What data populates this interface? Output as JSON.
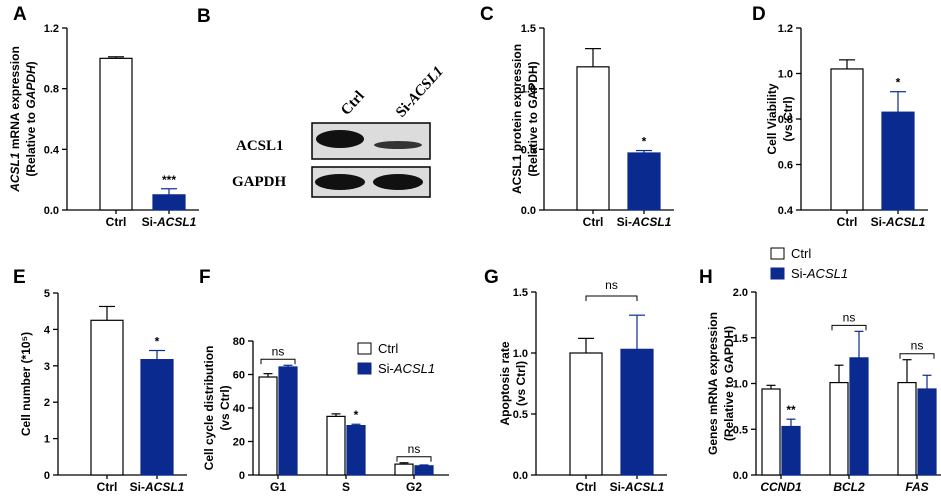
{
  "colors": {
    "ctrl": "#ffffff",
    "si": "#0b2a8f",
    "blot_band": "#111111",
    "blot_bg": "#d9d9d9"
  },
  "legend": {
    "ctrl": "Ctrl",
    "si_prefix": "Si-",
    "si_gene": "ACSL1"
  },
  "blot": {
    "panel_label": "B",
    "lanes": [
      {
        "prefix": "Ctrl",
        "gene": ""
      },
      {
        "prefix": "Si-",
        "gene": "ACSL1"
      }
    ],
    "rows": [
      "ACSL1",
      "GAPDH"
    ]
  },
  "chart_data": [
    {
      "panel": "A",
      "type": "bar",
      "ylabel_lines": [
        {
          "pre": "",
          "gene": "ACSL1",
          "post": " mRNA expression"
        },
        {
          "pre": "(Relative to ",
          "gene": "GAPDH",
          "post": ")"
        }
      ],
      "ylim": [
        0,
        1.2
      ],
      "yticks": [
        "0.0",
        "0.4",
        "0.8",
        "1.2"
      ],
      "categories": [
        {
          "pre": "Ctrl",
          "gene": ""
        },
        {
          "pre": "Si-",
          "gene": "ACSL1"
        }
      ],
      "values": [
        1.0,
        0.1
      ],
      "errors": [
        0.01,
        0.04
      ],
      "groups": [
        "ctrl",
        "si"
      ],
      "annotations": [
        {
          "bar": 1,
          "text": "***"
        }
      ]
    },
    {
      "panel": "C",
      "type": "bar",
      "ylabel_lines": [
        {
          "pre": "ACSL1 protein expression",
          "gene": "",
          "post": ""
        },
        {
          "pre": "(Relative to GAPDH)",
          "gene": "",
          "post": ""
        }
      ],
      "ylim": [
        0,
        1.5
      ],
      "yticks": [
        "0.0",
        "0.5",
        "1.0",
        "1.5"
      ],
      "categories": [
        {
          "pre": "Ctrl",
          "gene": ""
        },
        {
          "pre": "Si-",
          "gene": "ACSL1"
        }
      ],
      "values": [
        1.18,
        0.47
      ],
      "errors": [
        0.15,
        0.02
      ],
      "groups": [
        "ctrl",
        "si"
      ],
      "annotations": [
        {
          "bar": 1,
          "text": "*"
        }
      ]
    },
    {
      "panel": "D",
      "type": "bar",
      "ylabel_lines": [
        {
          "pre": "Cell Viability",
          "gene": "",
          "post": ""
        },
        {
          "pre": "(vs Ctrl)",
          "gene": "",
          "post": ""
        }
      ],
      "ylim": [
        0.4,
        1.2
      ],
      "yticks": [
        "0.4",
        "0.6",
        "0.8",
        "1.0",
        "1.2"
      ],
      "categories": [
        {
          "pre": "Ctrl",
          "gene": ""
        },
        {
          "pre": "Si-",
          "gene": "ACSL1"
        }
      ],
      "values": [
        1.02,
        0.83
      ],
      "errors": [
        0.04,
        0.09
      ],
      "groups": [
        "ctrl",
        "si"
      ],
      "annotations": [
        {
          "bar": 1,
          "text": "*"
        }
      ]
    },
    {
      "panel": "E",
      "type": "bar",
      "ylabel_lines": [
        {
          "pre": "Cell number (*10⁵)",
          "gene": "",
          "post": ""
        }
      ],
      "ylim": [
        0,
        5
      ],
      "yticks": [
        "0",
        "1",
        "2",
        "3",
        "4",
        "5"
      ],
      "categories": [
        {
          "pre": "Ctrl",
          "gene": ""
        },
        {
          "pre": "Si-",
          "gene": "ACSL1"
        }
      ],
      "values": [
        4.25,
        3.17
      ],
      "errors": [
        0.38,
        0.25
      ],
      "groups": [
        "ctrl",
        "si"
      ],
      "annotations": [
        {
          "bar": 1,
          "text": "*"
        }
      ]
    },
    {
      "panel": "F",
      "type": "bar",
      "ylabel_lines": [
        {
          "pre": "Cell cycle distribution",
          "gene": "",
          "post": ""
        },
        {
          "pre": "(vs Ctrl)",
          "gene": "",
          "post": ""
        }
      ],
      "ylim": [
        0,
        80
      ],
      "yticks": [
        "0",
        "20",
        "40",
        "60",
        "80"
      ],
      "categories": [
        {
          "pre": "G1",
          "gene": ""
        },
        {
          "pre": "S",
          "gene": ""
        },
        {
          "pre": "G2",
          "gene": ""
        }
      ],
      "series": [
        {
          "name": "Ctrl",
          "group": "ctrl",
          "values": [
            58.5,
            35.0,
            6.5
          ],
          "errors": [
            2.0,
            1.5,
            0.8
          ]
        },
        {
          "name": "Si-ACSL1",
          "group": "si",
          "values": [
            64.5,
            29.5,
            5.5
          ],
          "errors": [
            1.0,
            0.8,
            0.5
          ]
        }
      ],
      "annotations": [
        {
          "category": 0,
          "text": "ns",
          "bracket": true
        },
        {
          "category": 1,
          "text": "*",
          "bracket": false
        },
        {
          "category": 2,
          "text": "ns",
          "bracket": true
        }
      ],
      "legend": "top-right"
    },
    {
      "panel": "G",
      "type": "bar",
      "ylabel_lines": [
        {
          "pre": "Apoptosis rate",
          "gene": "",
          "post": ""
        },
        {
          "pre": "(vs Ctrl)",
          "gene": "",
          "post": ""
        }
      ],
      "ylim": [
        0,
        1.5
      ],
      "yticks": [
        "0.0",
        "0.5",
        "1.0",
        "1.5"
      ],
      "categories": [
        {
          "pre": "Ctrl",
          "gene": ""
        },
        {
          "pre": "Si-",
          "gene": "ACSL1"
        }
      ],
      "values": [
        1.0,
        1.03
      ],
      "errors": [
        0.12,
        0.28
      ],
      "groups": [
        "ctrl",
        "si"
      ],
      "bracket": {
        "from": 0,
        "to": 1,
        "text": "ns"
      }
    },
    {
      "panel": "H",
      "type": "bar",
      "ylabel_lines": [
        {
          "pre": "Genes mRNA expression",
          "gene": "",
          "post": ""
        },
        {
          "pre": "(Relative to GAPDH)",
          "gene": "",
          "post": ""
        }
      ],
      "ylim": [
        0,
        2.0
      ],
      "yticks": [
        "0.0",
        "0.5",
        "1.0",
        "1.5",
        "2.0"
      ],
      "categories": [
        {
          "pre": "",
          "gene": "CCND1"
        },
        {
          "pre": "",
          "gene": "BCL2"
        },
        {
          "pre": "",
          "gene": "FAS"
        }
      ],
      "series": [
        {
          "name": "Ctrl",
          "group": "ctrl",
          "values": [
            0.94,
            1.01,
            1.01
          ],
          "errors": [
            0.04,
            0.19,
            0.25
          ]
        },
        {
          "name": "Si-ACSL1",
          "group": "si",
          "values": [
            0.53,
            1.28,
            0.94
          ],
          "errors": [
            0.08,
            0.29,
            0.15
          ]
        }
      ],
      "annotations": [
        {
          "category": 0,
          "text": "**",
          "bracket": false
        },
        {
          "category": 1,
          "text": "ns",
          "bracket": true
        },
        {
          "category": 2,
          "text": "ns",
          "bracket": true
        }
      ],
      "legend": "top-left"
    }
  ]
}
